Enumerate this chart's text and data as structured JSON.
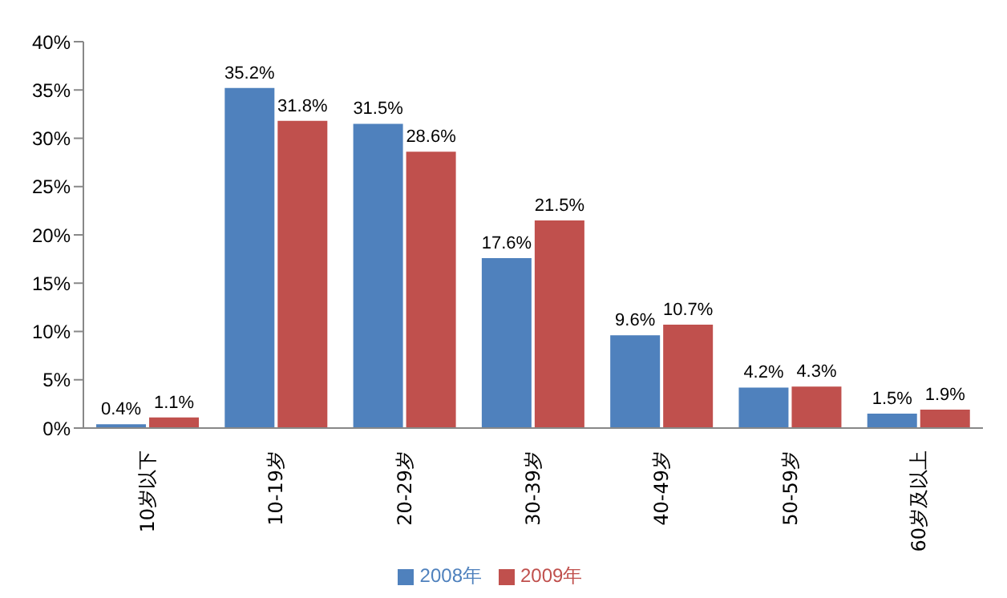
{
  "chart_data": {
    "type": "bar",
    "categories": [
      "10岁以下",
      "10-19岁",
      "20-29岁",
      "30-39岁",
      "40-49岁",
      "50-59岁",
      "60岁及以上"
    ],
    "series": [
      {
        "name": "2008年",
        "color": "#4f81bd",
        "values": [
          0.4,
          35.2,
          31.5,
          17.6,
          9.6,
          4.2,
          1.5
        ],
        "value_labels": [
          "0.4%",
          "35.2%",
          "31.5%",
          "17.6%",
          "9.6%",
          "4.2%",
          "1.5%"
        ]
      },
      {
        "name": "2009年",
        "color": "#c0504d",
        "values": [
          1.1,
          31.8,
          28.6,
          21.5,
          10.7,
          4.3,
          1.9
        ],
        "value_labels": [
          "1.1%",
          "31.8%",
          "28.6%",
          "21.5%",
          "10.7%",
          "4.3%",
          "1.9%"
        ]
      }
    ],
    "ylim": [
      0,
      40
    ],
    "yticks": [
      {
        "value": 0,
        "label": "0%"
      },
      {
        "value": 5,
        "label": "5%"
      },
      {
        "value": 10,
        "label": "10%"
      },
      {
        "value": 15,
        "label": "15%"
      },
      {
        "value": 20,
        "label": "20%"
      },
      {
        "value": 25,
        "label": "25%"
      },
      {
        "value": 30,
        "label": "30%"
      },
      {
        "value": 35,
        "label": "35%"
      },
      {
        "value": 40,
        "label": "40%"
      }
    ],
    "grid": false,
    "legend": "bottom"
  }
}
